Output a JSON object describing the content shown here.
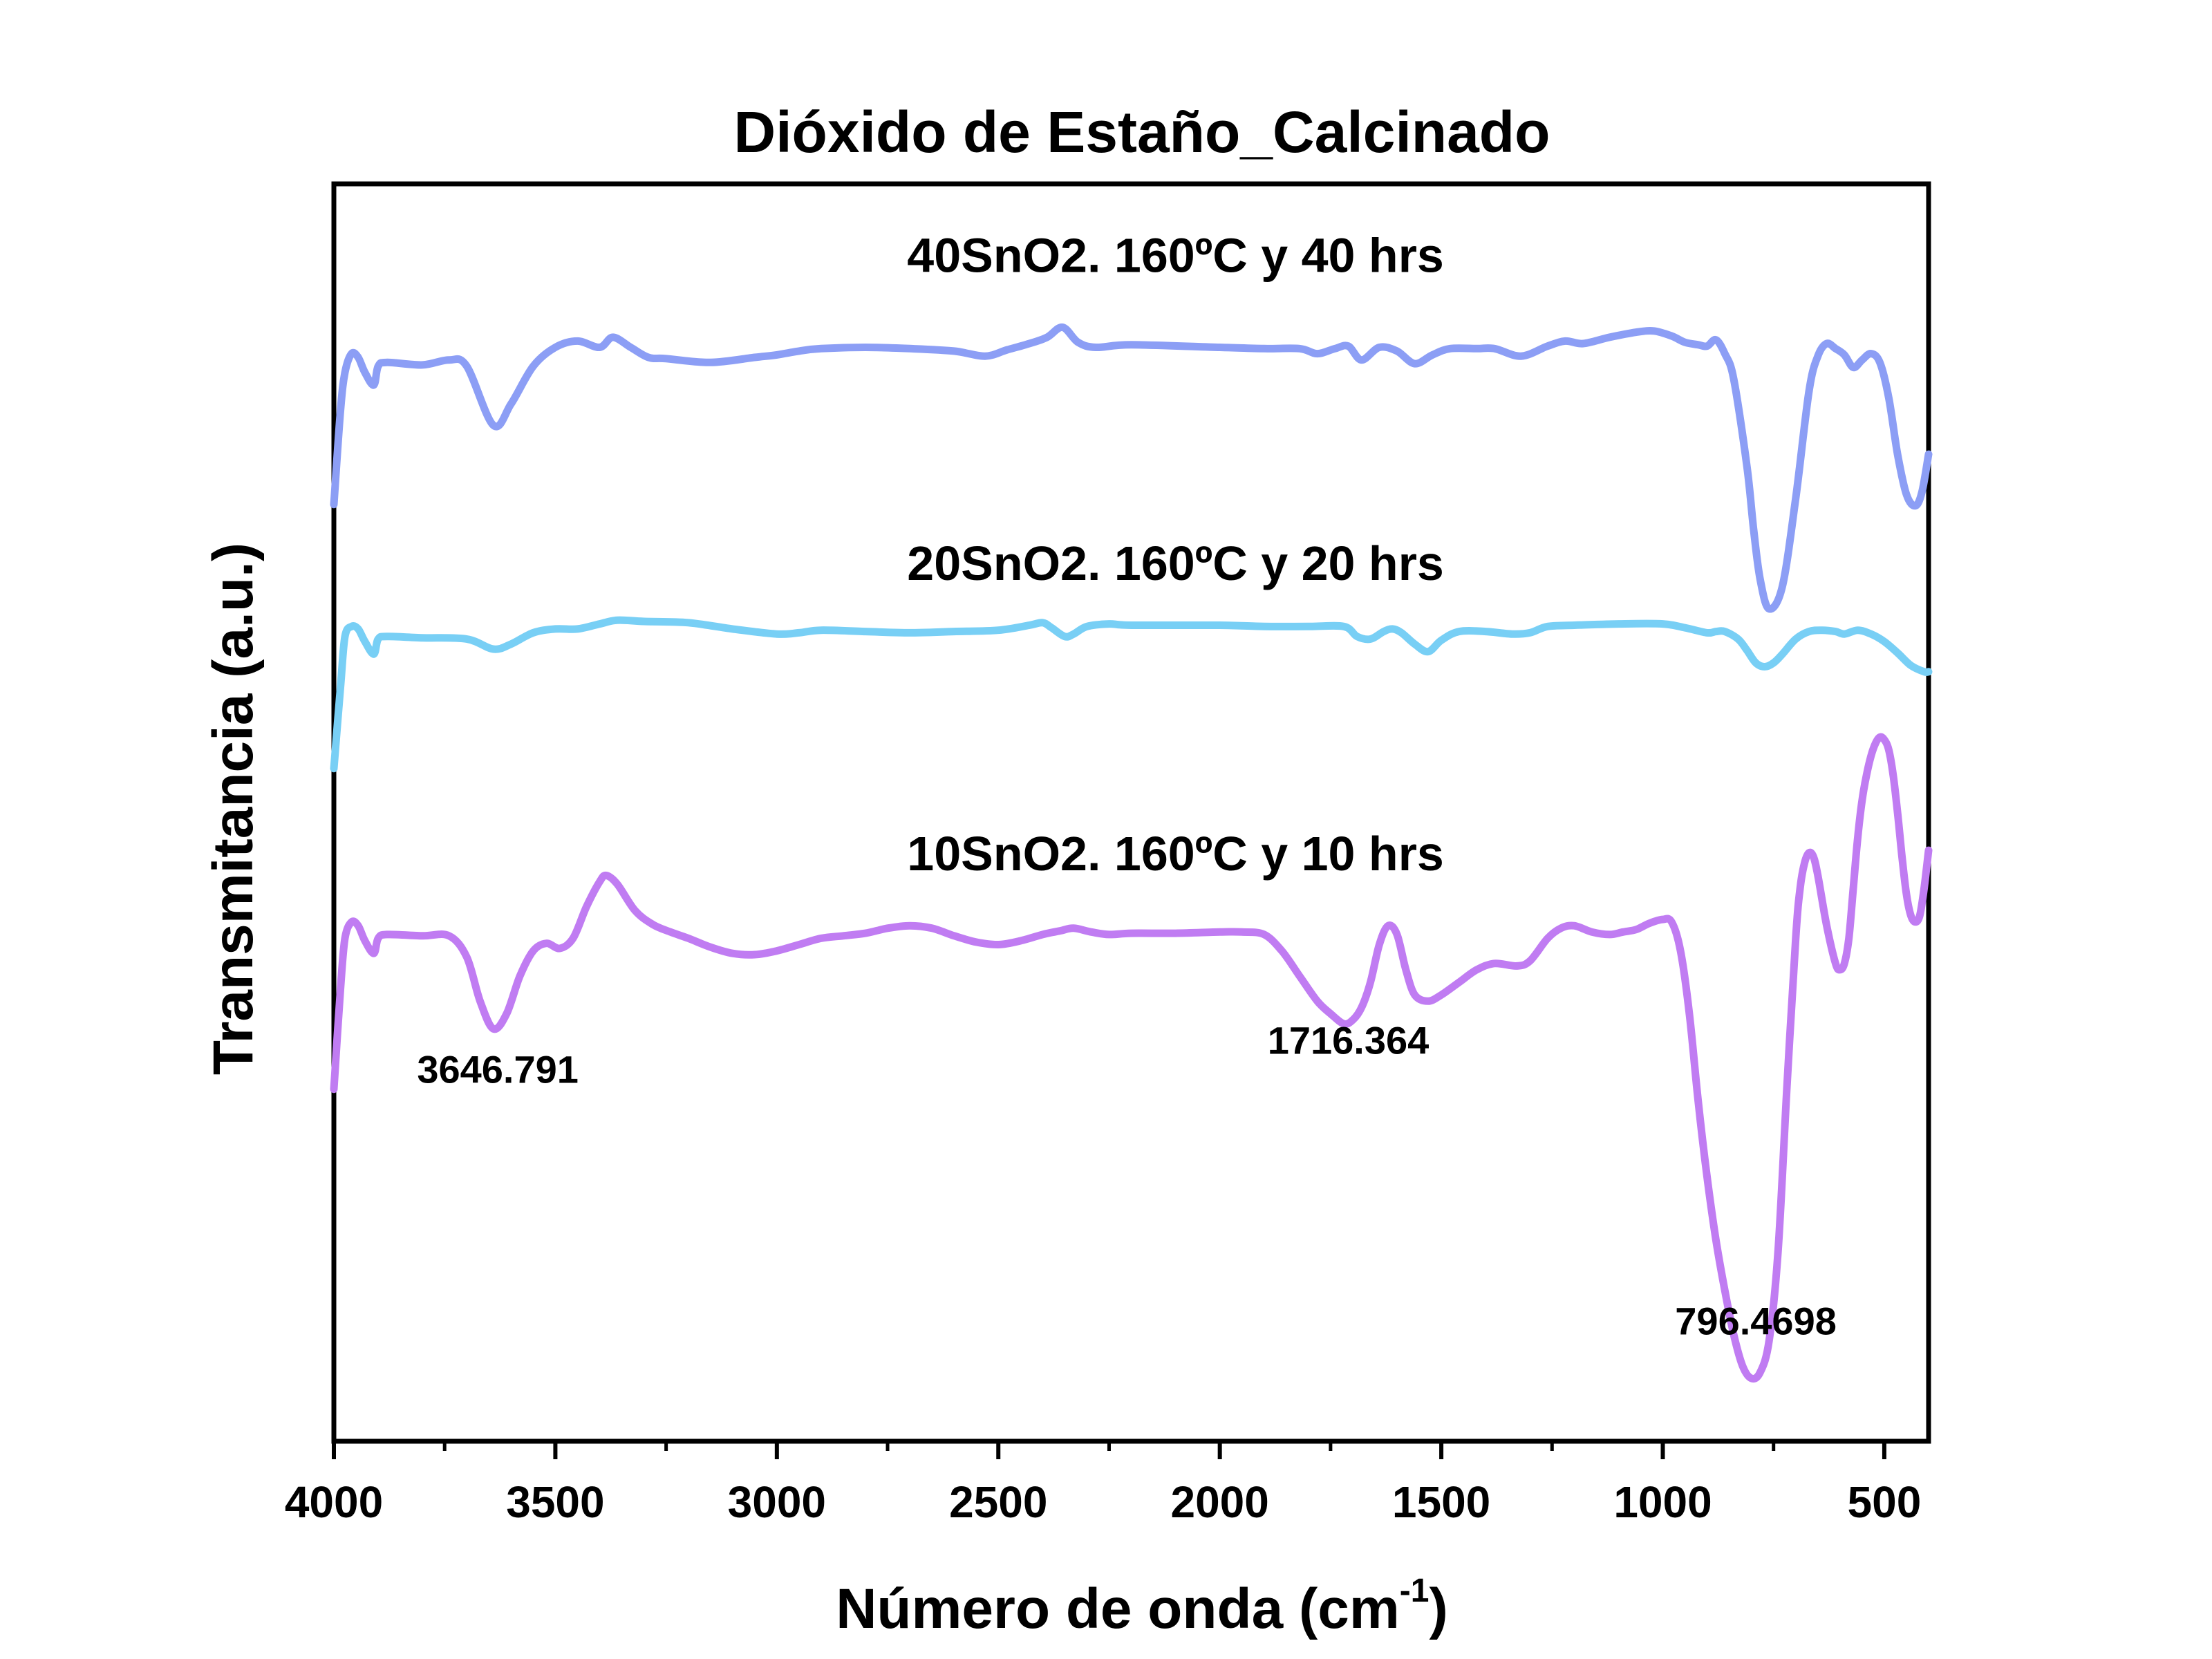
{
  "chart_data": {
    "type": "line",
    "title": "Dióxido de Estaño_Calcinado",
    "xlabel": "Número de onda (cm",
    "xlabel_sup": "-1",
    "xlabel_end": ")",
    "ylabel": "Transmitancia (a.u.)",
    "xlim": [
      4000,
      400
    ],
    "x_reversed": true,
    "ylim": [
      0,
      100
    ],
    "y_ticks_shown": false,
    "grid": false,
    "legend": "none",
    "x_ticks": [
      4000,
      3500,
      3000,
      2500,
      2000,
      1500,
      1000,
      500
    ],
    "x_tick_labels": [
      "4000",
      "3500",
      "3000",
      "2500",
      "2000",
      "1500",
      "1000",
      "500"
    ],
    "series": [
      {
        "name": "40SnO2. 160ºC y 40 hrs",
        "color": "#8c9ef5",
        "x": [
          4000,
          3985,
          3975,
          3960,
          3945,
          3930,
          3910,
          3900,
          3880,
          3800,
          3740,
          3700,
          3640,
          3600,
          3550,
          3500,
          3450,
          3400,
          3370,
          3330,
          3290,
          3250,
          3150,
          3050,
          3000,
          2950,
          2900,
          2800,
          2700,
          2600,
          2530,
          2480,
          2430,
          2390,
          2355,
          2320,
          2280,
          2200,
          2000,
          1900,
          1820,
          1780,
          1740,
          1710,
          1680,
          1640,
          1600,
          1560,
          1520,
          1480,
          1420,
          1380,
          1320,
          1260,
          1220,
          1180,
          1120,
          1060,
          1020,
          980,
          950,
          920,
          900,
          880,
          860,
          840,
          810,
          795,
          780,
          760,
          730,
          700,
          670,
          650,
          630,
          610,
          590,
          570,
          550,
          530,
          510,
          490,
          470,
          450,
          430,
          415,
          400
        ],
        "y": [
          74.5,
          82.0,
          85.0,
          86.5,
          86.2,
          85.0,
          84.0,
          85.5,
          85.8,
          85.6,
          86.0,
          85.5,
          80.8,
          82.5,
          85.5,
          87.0,
          87.5,
          87.0,
          87.8,
          87.0,
          86.2,
          86.1,
          85.8,
          86.2,
          86.4,
          86.7,
          86.9,
          87.0,
          86.9,
          86.7,
          86.3,
          86.8,
          87.3,
          87.8,
          88.6,
          87.4,
          87.0,
          87.2,
          87.0,
          86.9,
          86.9,
          86.5,
          86.9,
          87.1,
          86.0,
          87.0,
          86.7,
          85.7,
          86.4,
          86.9,
          86.9,
          86.9,
          86.3,
          87.1,
          87.5,
          87.3,
          87.8,
          88.2,
          88.3,
          87.9,
          87.4,
          87.2,
          87.1,
          87.6,
          86.5,
          84.5,
          77.5,
          72.5,
          68.5,
          66.2,
          68.0,
          75.0,
          83.5,
          86.3,
          87.3,
          86.9,
          86.4,
          85.4,
          86.0,
          86.5,
          85.8,
          83.0,
          78.5,
          75.3,
          74.4,
          75.5,
          78.5
        ]
      },
      {
        "name": "20SnO2. 160ºC y 20 hrs",
        "color": "#78cff5",
        "x": [
          4000,
          3985,
          3975,
          3960,
          3945,
          3930,
          3910,
          3900,
          3880,
          3800,
          3700,
          3640,
          3600,
          3550,
          3500,
          3450,
          3400,
          3360,
          3300,
          3200,
          3100,
          3000,
          2950,
          2900,
          2800,
          2700,
          2600,
          2500,
          2430,
          2400,
          2380,
          2350,
          2330,
          2300,
          2250,
          2200,
          2000,
          1900,
          1800,
          1720,
          1690,
          1660,
          1630,
          1610,
          1590,
          1560,
          1530,
          1500,
          1460,
          1400,
          1340,
          1300,
          1260,
          1200,
          1100,
          1000,
          950,
          900,
          880,
          860,
          830,
          810,
          790,
          770,
          750,
          730,
          700,
          670,
          640,
          610,
          590,
          560,
          530,
          500,
          470,
          440,
          410,
          400
        ],
        "y": [
          53.5,
          60.0,
          64.0,
          64.8,
          64.6,
          63.6,
          62.6,
          63.8,
          64.0,
          63.9,
          63.8,
          63.0,
          63.4,
          64.3,
          64.6,
          64.6,
          65.0,
          65.3,
          65.2,
          65.1,
          64.6,
          64.2,
          64.3,
          64.5,
          64.4,
          64.3,
          64.4,
          64.5,
          64.9,
          65.1,
          64.7,
          64.0,
          64.2,
          64.8,
          65.0,
          64.9,
          64.9,
          64.8,
          64.8,
          64.8,
          64.0,
          63.8,
          64.4,
          64.6,
          64.3,
          63.4,
          62.8,
          63.7,
          64.4,
          64.4,
          64.2,
          64.3,
          64.8,
          64.9,
          65.0,
          65.0,
          64.7,
          64.3,
          64.4,
          64.4,
          63.8,
          62.9,
          61.9,
          61.6,
          61.9,
          62.6,
          63.8,
          64.4,
          64.5,
          64.4,
          64.2,
          64.5,
          64.2,
          63.6,
          62.7,
          61.7,
          61.2,
          61.2
        ]
      },
      {
        "name": "10SnO2. 160ºC y 10 hrs",
        "color": "#c07cf2",
        "x": [
          4000,
          3985,
          3975,
          3960,
          3945,
          3930,
          3910,
          3900,
          3880,
          3800,
          3740,
          3700,
          3670,
          3640,
          3610,
          3580,
          3550,
          3520,
          3490,
          3460,
          3430,
          3400,
          3385,
          3360,
          3320,
          3280,
          3240,
          3200,
          3150,
          3100,
          3050,
          3000,
          2950,
          2900,
          2850,
          2800,
          2750,
          2700,
          2650,
          2600,
          2550,
          2500,
          2450,
          2400,
          2360,
          2330,
          2290,
          2250,
          2200,
          2100,
          2000,
          1950,
          1900,
          1860,
          1820,
          1780,
          1750,
          1720,
          1700,
          1680,
          1660,
          1640,
          1620,
          1600,
          1580,
          1560,
          1530,
          1500,
          1460,
          1420,
          1380,
          1330,
          1300,
          1260,
          1230,
          1200,
          1160,
          1120,
          1090,
          1060,
          1030,
          1000,
          980,
          960,
          940,
          920,
          900,
          880,
          860,
          840,
          820,
          800,
          780,
          760,
          740,
          720,
          700,
          690,
          680,
          670,
          660,
          650,
          630,
          610,
          600,
          590,
          580,
          570,
          560,
          550,
          540,
          530,
          520,
          510,
          500,
          490,
          480,
          470,
          460,
          450,
          440,
          430,
          420,
          410,
          400
        ],
        "y": [
          28.0,
          36.0,
          40.0,
          41.3,
          41.0,
          39.8,
          38.8,
          40.0,
          40.3,
          40.2,
          40.2,
          38.5,
          35.0,
          32.8,
          34.0,
          37.0,
          39.0,
          39.6,
          39.2,
          40.0,
          42.5,
          44.5,
          45.0,
          44.3,
          42.2,
          41.1,
          40.5,
          40.0,
          39.3,
          38.8,
          38.7,
          39.0,
          39.5,
          40.0,
          40.2,
          40.4,
          40.8,
          41.0,
          40.8,
          40.2,
          39.7,
          39.5,
          39.8,
          40.3,
          40.6,
          40.8,
          40.5,
          40.3,
          40.4,
          40.4,
          40.5,
          40.5,
          40.3,
          39.0,
          37.0,
          35.0,
          34.0,
          33.2,
          33.5,
          34.5,
          36.5,
          39.5,
          41.0,
          40.3,
          37.5,
          35.5,
          35.0,
          35.5,
          36.5,
          37.5,
          38.0,
          37.8,
          38.2,
          40.0,
          40.8,
          41.0,
          40.5,
          40.3,
          40.5,
          40.7,
          41.2,
          41.5,
          41.3,
          39.0,
          34.0,
          27.0,
          21.0,
          16.0,
          12.0,
          8.5,
          6.0,
          5.0,
          5.5,
          8.0,
          15.0,
          28.0,
          40.0,
          44.0,
          46.0,
          46.8,
          46.5,
          45.0,
          41.0,
          38.0,
          37.5,
          38.0,
          40.0,
          44.0,
          48.0,
          51.0,
          53.0,
          54.5,
          55.5,
          56.0,
          55.8,
          55.0,
          53.0,
          50.0,
          46.5,
          43.5,
          41.8,
          41.3,
          41.8,
          44.0,
          47.0
        ]
      }
    ],
    "annotations": [
      {
        "text": "40SnO2. 160ºC y 40 hrs",
        "x": 2100,
        "y": 93.0
      },
      {
        "text": "20SnO2. 160ºC y 20 hrs",
        "x": 2100,
        "y": 68.5
      },
      {
        "text": "10SnO2. 160ºC y 10 hrs",
        "x": 2100,
        "y": 45.4
      },
      {
        "text": "3646.791",
        "x": 3630,
        "y": 28.5
      },
      {
        "text": "1716.364",
        "x": 1710,
        "y": 30.8
      },
      {
        "text": "796.4698",
        "x": 790,
        "y": 8.5
      }
    ]
  }
}
